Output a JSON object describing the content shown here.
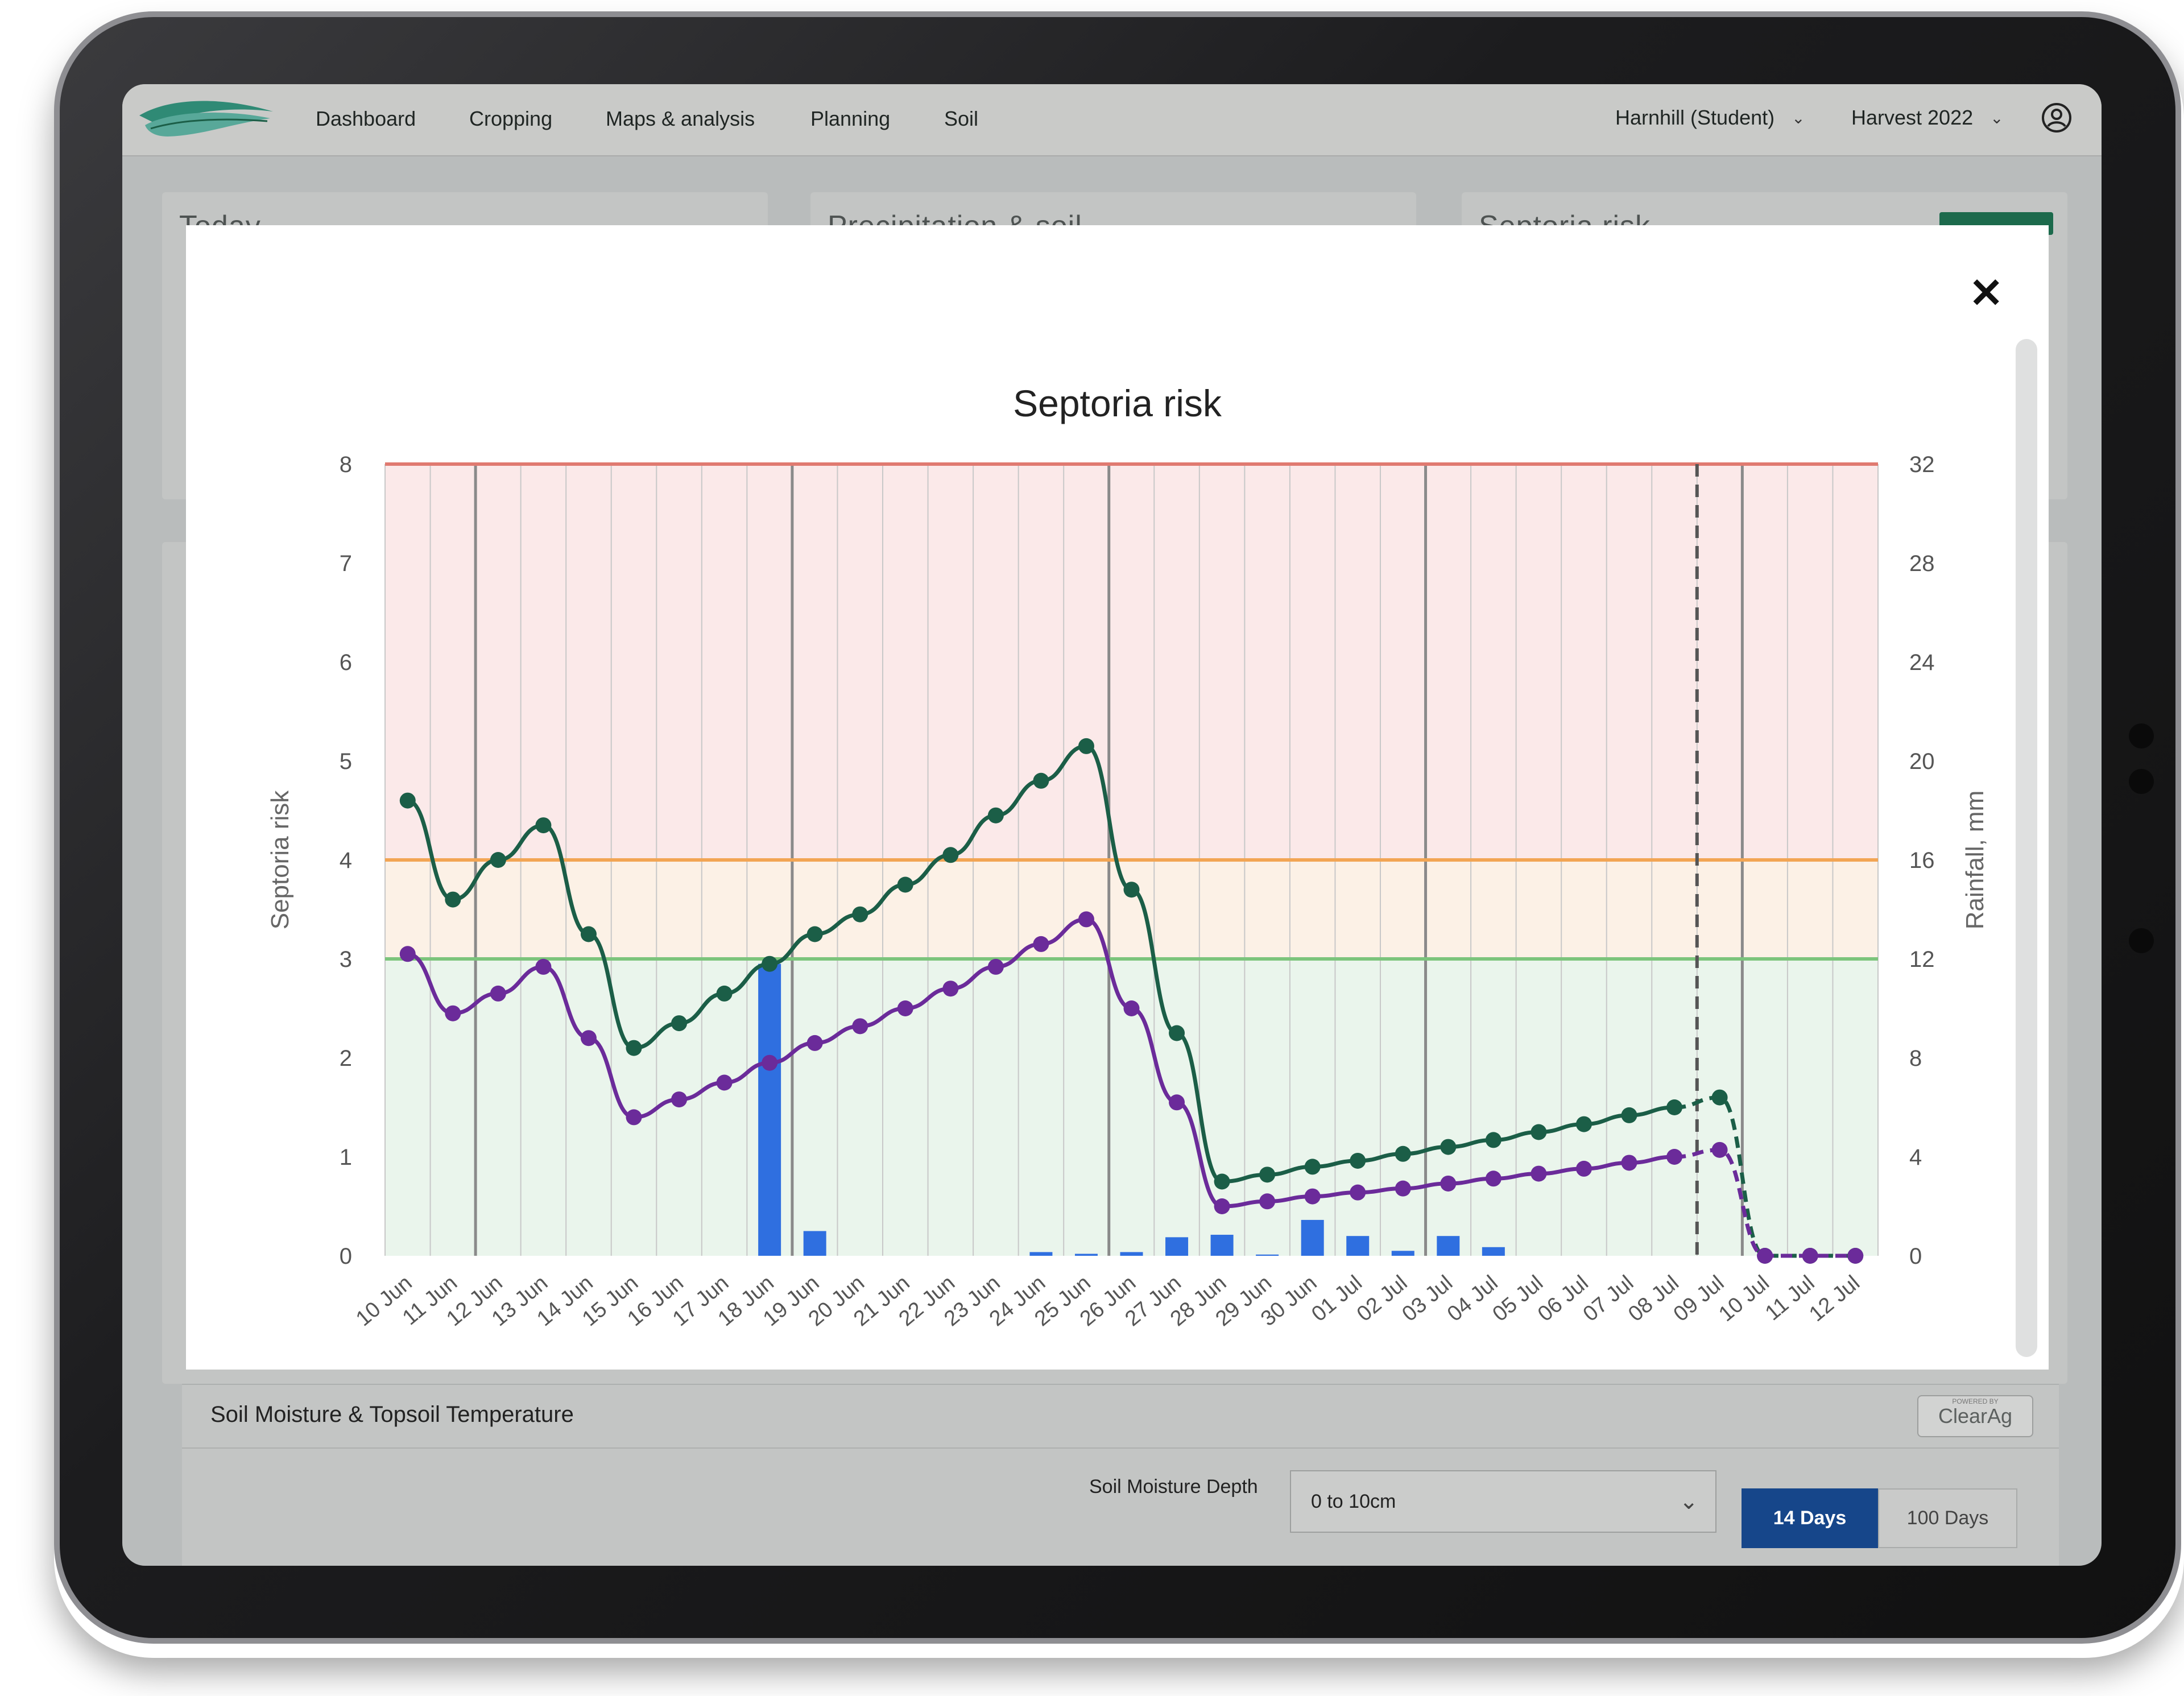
{
  "nav": {
    "items": [
      "Dashboard",
      "Cropping",
      "Maps & analysis",
      "Planning",
      "Soil"
    ],
    "farm_selector": "Harnhill (Student)",
    "harvest_selector": "Harvest 2022"
  },
  "background_cards": {
    "card1_title": "Today",
    "card2_title": "Precipitation & soil",
    "card3_title": "Septoria risk"
  },
  "modal": {
    "close_icon": "close-icon"
  },
  "chart_data": {
    "type": "line",
    "title": "Septoria risk",
    "ylabel": "Septoria risk",
    "y2label": "Rainfall, mm",
    "ylim": [
      0,
      8
    ],
    "y2lim": [
      0,
      32
    ],
    "yticks": [
      0,
      1,
      2,
      3,
      4,
      5,
      6,
      7,
      8
    ],
    "y2ticks": [
      0,
      4,
      8,
      12,
      16,
      20,
      24,
      28,
      32
    ],
    "categories": [
      "10 Jun",
      "11 Jun",
      "12 Jun",
      "13 Jun",
      "14 Jun",
      "15 Jun",
      "16 Jun",
      "17 Jun",
      "18 Jun",
      "19 Jun",
      "20 Jun",
      "21 Jun",
      "22 Jun",
      "23 Jun",
      "24 Jun",
      "25 Jun",
      "26 Jun",
      "27 Jun",
      "28 Jun",
      "29 Jun",
      "30 Jun",
      "01 Jul",
      "02 Jul",
      "03 Jul",
      "04 Jul",
      "05 Jul",
      "06 Jul",
      "07 Jul",
      "08 Jul",
      "09 Jul",
      "10 Jul",
      "11 Jul",
      "12 Jul"
    ],
    "risk_bands": [
      {
        "from": 4,
        "to": 8,
        "color": "#fbe9e9",
        "line_color": "#e07a70"
      },
      {
        "from": 3,
        "to": 4,
        "color": "#fcf1e6",
        "line_color": "#f2a554"
      },
      {
        "from": 0,
        "to": 3,
        "color": "#eaf5ec",
        "line_color": "#7cc47c"
      }
    ],
    "forecast_start": "08 Jul",
    "series": [
      {
        "color": "#1b5e47",
        "axis": "left",
        "values": [
          4.6,
          3.6,
          4.0,
          4.35,
          3.25,
          2.1,
          2.35,
          2.65,
          2.95,
          3.25,
          3.45,
          3.75,
          4.05,
          4.45,
          4.8,
          5.15,
          3.7,
          2.25,
          0.75,
          0.82,
          0.9,
          0.96,
          1.03,
          1.1,
          1.17,
          1.25,
          1.33,
          1.42,
          1.5,
          1.6,
          0,
          0,
          0
        ]
      },
      {
        "color": "#6b2b9a",
        "axis": "left",
        "values": [
          3.05,
          2.45,
          2.65,
          2.92,
          2.2,
          1.4,
          1.58,
          1.75,
          1.95,
          2.15,
          2.32,
          2.5,
          2.7,
          2.92,
          3.15,
          3.4,
          2.5,
          1.55,
          0.5,
          0.55,
          0.6,
          0.64,
          0.68,
          0.73,
          0.78,
          0.83,
          0.88,
          0.94,
          1.0,
          1.07,
          0,
          0,
          0
        ]
      },
      {
        "type": "bar",
        "color": "#2f6fe0",
        "axis": "right",
        "values": [
          0,
          0,
          0,
          0,
          0,
          0,
          0,
          0,
          11.8,
          1.0,
          0,
          0,
          0,
          0,
          0.15,
          0.08,
          0.15,
          0.75,
          0.85,
          0.05,
          1.45,
          0.8,
          0.2,
          0.8,
          0.35,
          0,
          0,
          0,
          0,
          0,
          0,
          0,
          0
        ]
      }
    ]
  },
  "soil": {
    "title": "Soil Moisture & Topsoil Temperature",
    "powered_by": "POWERED BY",
    "brand": "ClearAg",
    "depth_label": "Soil Moisture Depth",
    "depth_value": "0 to 10cm",
    "range_buttons": [
      "14 Days",
      "100 Days"
    ]
  }
}
